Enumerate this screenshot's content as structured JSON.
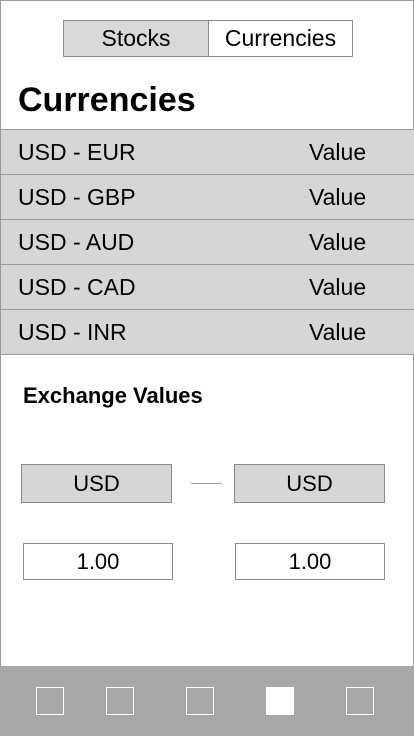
{
  "segmented": {
    "stocks_label": "Stocks",
    "currencies_label": "Currencies",
    "selected": "Currencies"
  },
  "page_title": "Currencies",
  "currencies": [
    {
      "pair": "USD - EUR",
      "value": "Value"
    },
    {
      "pair": "USD - GBP",
      "value": "Value"
    },
    {
      "pair": "USD - AUD",
      "value": "Value"
    },
    {
      "pair": "USD - CAD",
      "value": "Value"
    },
    {
      "pair": "USD - INR",
      "value": "Value"
    }
  ],
  "exchange": {
    "title": "Exchange Values",
    "from_currency": "USD",
    "to_currency": "USD",
    "from_amount": "1.00",
    "to_amount": "1.00"
  },
  "tabbar": {
    "tabs": [
      "tab-1",
      "tab-2",
      "tab-3",
      "tab-4",
      "tab-5"
    ],
    "active_index": 3
  },
  "colors": {
    "row_bg": "#d6d6d6",
    "tabbar_bg": "#a8a8a8",
    "active_tab": "#ffffff"
  }
}
